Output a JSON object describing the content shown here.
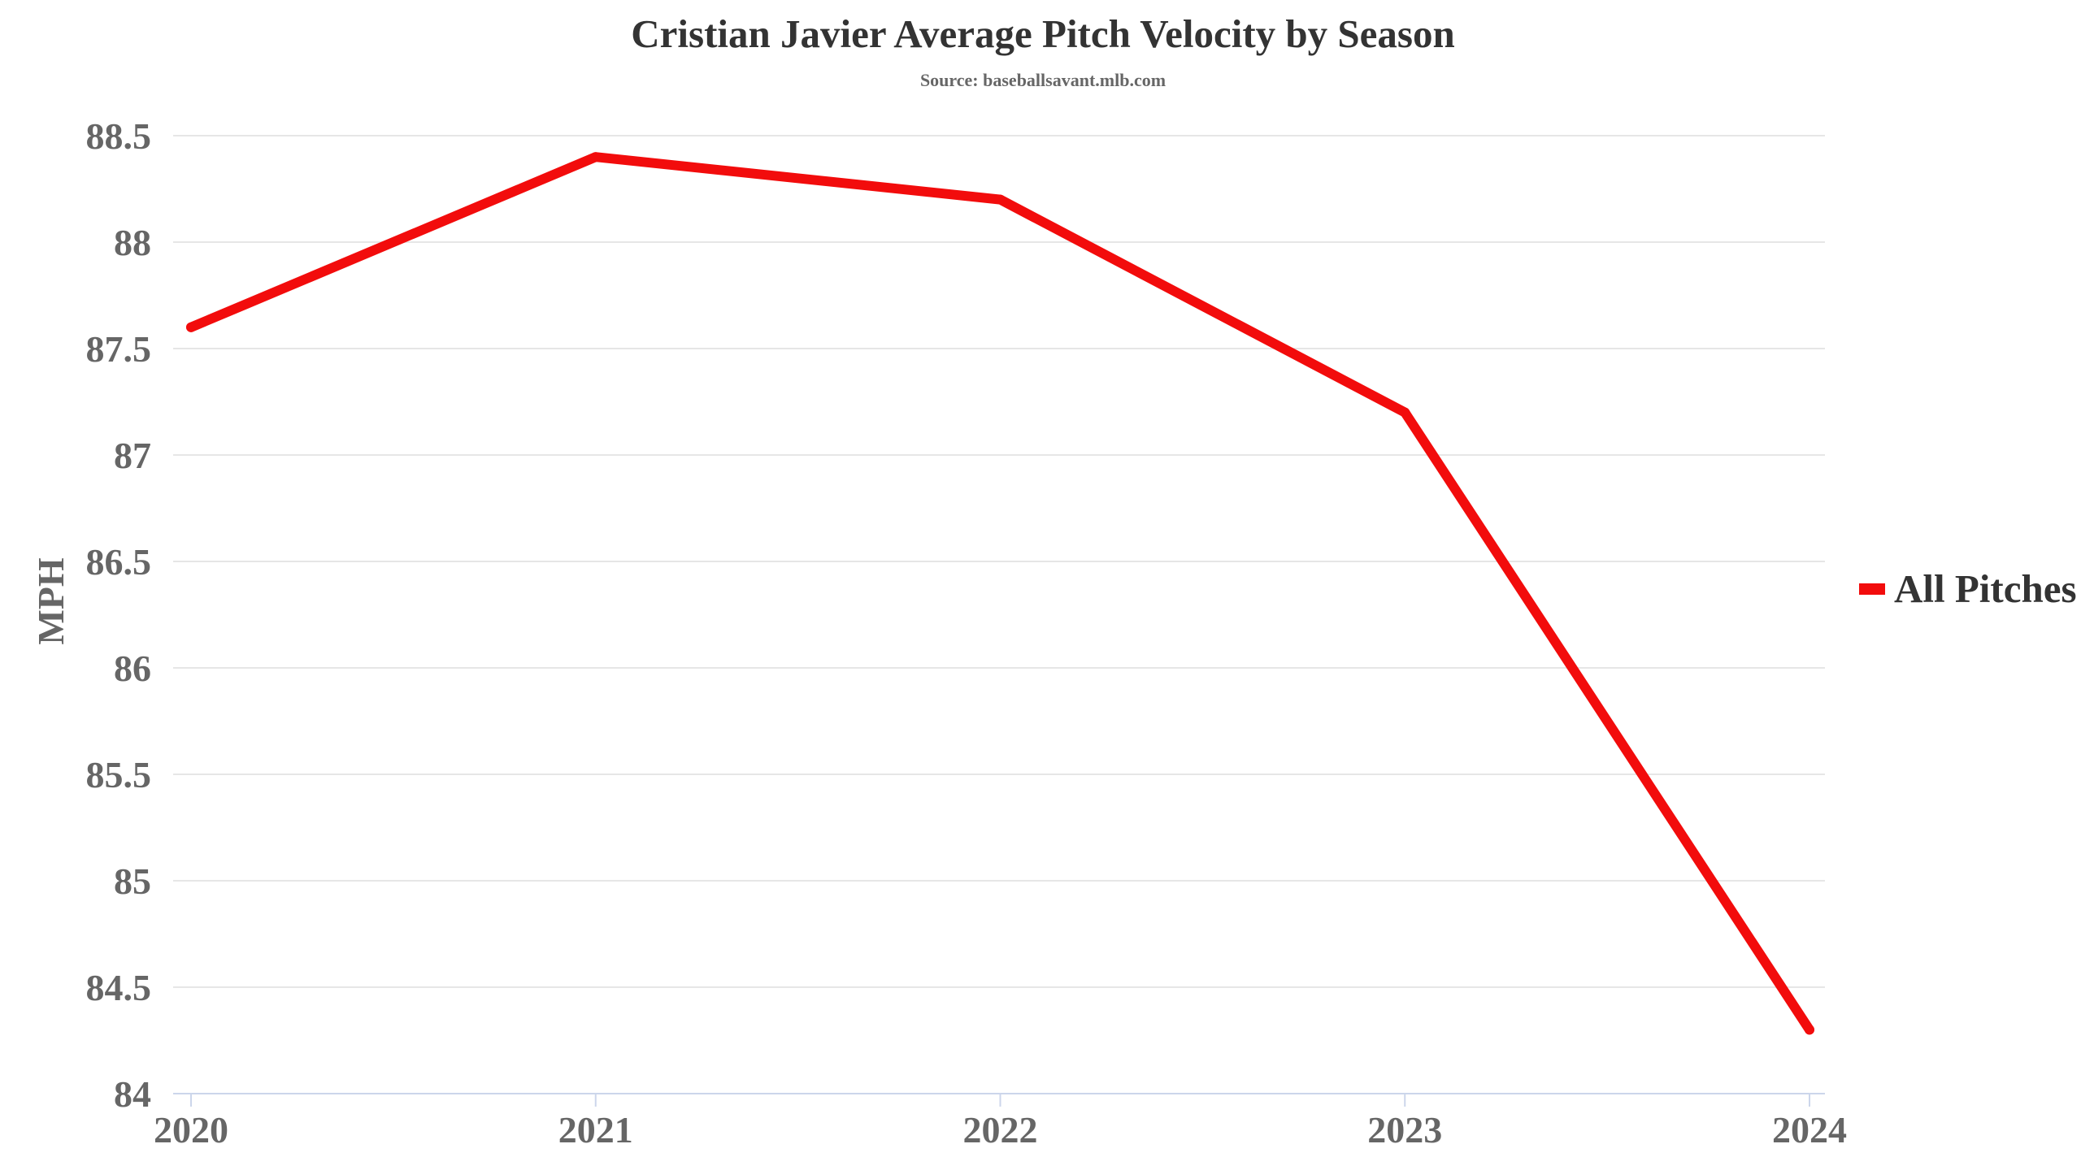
{
  "chart_data": {
    "type": "line",
    "title": "Cristian Javier Average Pitch Velocity by Season",
    "subtitle": "Source: baseballsavant.mlb.com",
    "xlabel": "",
    "ylabel": "MPH",
    "categories": [
      "2020",
      "2021",
      "2022",
      "2023",
      "2024"
    ],
    "series": [
      {
        "name": "All Pitches",
        "color": "#f20c0c",
        "values": [
          87.6,
          88.4,
          88.2,
          87.2,
          84.3
        ]
      }
    ],
    "ylim": [
      84,
      88.5
    ],
    "yticks": [
      84,
      84.5,
      85,
      85.5,
      86,
      86.5,
      87,
      87.5,
      88,
      88.5
    ],
    "ytick_labels": [
      "84",
      "84.5",
      "85",
      "85.5",
      "86",
      "86.5",
      "87",
      "87.5",
      "88",
      "88.5"
    ],
    "grid": true,
    "legend": "right"
  }
}
